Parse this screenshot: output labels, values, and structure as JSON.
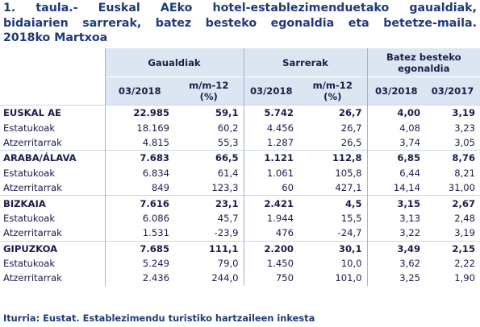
{
  "title": [
    "1. taula.- Euskal AEko hotel-establezimenduetako gaualdiak,",
    "bidaiarien sarrerak, batez besteko egonaldia eta betetze-maila.",
    "2018ko Martxoa"
  ],
  "table": {
    "column_groups": [
      "Gaualdiak",
      "Sarrerak",
      "Batez besteko\negonaldia"
    ],
    "columns": [
      "03/2018",
      "m/m-12\n(%)",
      "03/2018",
      "m/m-12\n(%)",
      "03/2018",
      "03/2017"
    ],
    "groups": [
      {
        "name": "EUSKAL AE",
        "values": [
          "22.985",
          "59,1",
          "5.742",
          "26,7",
          "4,00",
          "3,19"
        ],
        "rows": [
          {
            "label": "Estatukoak",
            "values": [
              "18.169",
              "60,2",
              "4.456",
              "26,7",
              "4,08",
              "3,23"
            ]
          },
          {
            "label": "Atzerritarrak",
            "values": [
              "4.815",
              "55,3",
              "1.287",
              "26,5",
              "3,74",
              "3,05"
            ]
          }
        ]
      },
      {
        "name": "ARABA/ÁLAVA",
        "values": [
          "7.683",
          "66,5",
          "1.121",
          "112,8",
          "6,85",
          "8,76"
        ],
        "rows": [
          {
            "label": "Estatukoak",
            "values": [
              "6.834",
              "61,4",
              "1.061",
              "105,8",
              "6,44",
              "8,21"
            ]
          },
          {
            "label": "Atzerritarrak",
            "values": [
              "849",
              "123,3",
              "60",
              "427,1",
              "14,14",
              "31,00"
            ]
          }
        ]
      },
      {
        "name": "BIZKAIA",
        "values": [
          "7.616",
          "23,1",
          "2.421",
          "4,5",
          "3,15",
          "2,67"
        ],
        "rows": [
          {
            "label": "Estatukoak",
            "values": [
              "6.086",
              "45,7",
              "1.944",
              "15,5",
              "3,13",
              "2,48"
            ]
          },
          {
            "label": "Atzerritarrak",
            "values": [
              "1.531",
              "-23,9",
              "476",
              "-24,7",
              "3,22",
              "3,19"
            ]
          }
        ]
      },
      {
        "name": "GIPUZKOA",
        "values": [
          "7.685",
          "111,1",
          "2.200",
          "30,1",
          "3,49",
          "2,15"
        ],
        "rows": [
          {
            "label": "Estatukoak",
            "values": [
              "5.249",
              "79,0",
              "1.450",
              "10,0",
              "3,62",
              "2,22"
            ]
          },
          {
            "label": "Atzerritarrak",
            "values": [
              "2.436",
              "244,0",
              "750",
              "101,0",
              "3,25",
              "1,90"
            ]
          }
        ]
      }
    ]
  },
  "source": "Iturria: Eustat. Establezimendu turistiko hartzaileen inkesta"
}
